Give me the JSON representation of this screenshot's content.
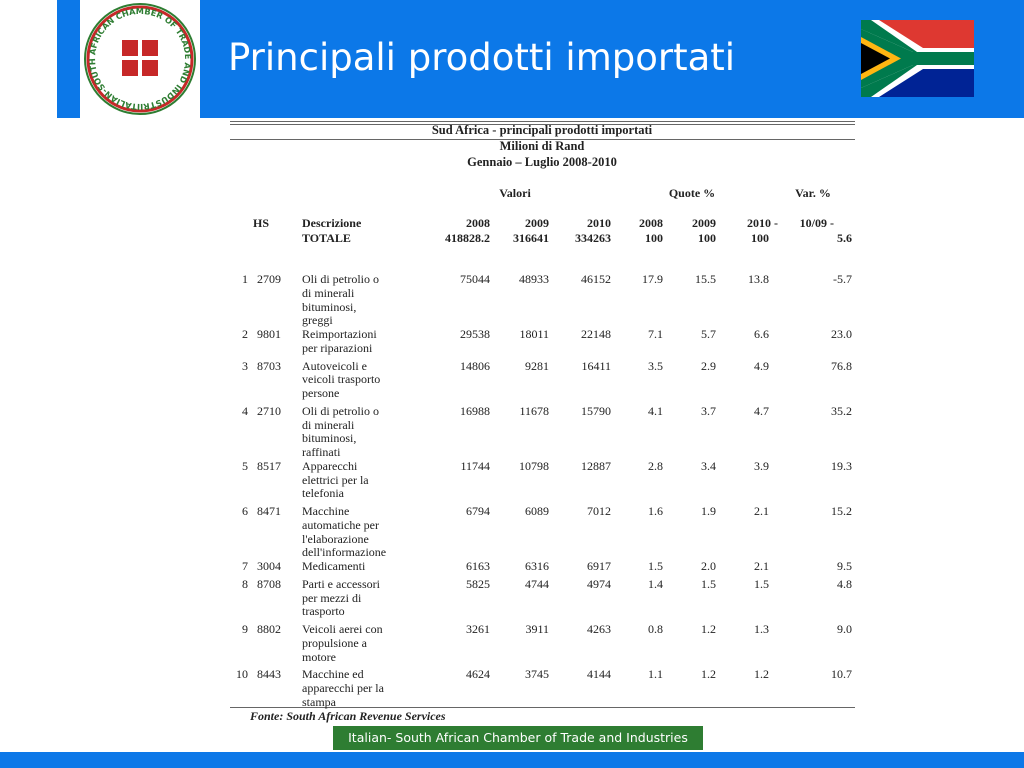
{
  "header": {
    "title": "Principali prodotti importati",
    "logo_text": "ITALIAN-SOUTH AFRICAN CHAMBER OF TRADE AND INDUSTRIES"
  },
  "table": {
    "title": [
      "Sud Africa - principali prodotti importati",
      "Milioni di Rand",
      "Gennaio – Luglio 2008-2010"
    ],
    "groups": [
      "Valori",
      "Quote %",
      "Var. %"
    ],
    "columns": [
      [
        "HS"
      ],
      [
        "Descrizione",
        "TOTALE"
      ],
      [
        "2008",
        "418828.2"
      ],
      [
        "2009",
        "316641"
      ],
      [
        "2010",
        "334263"
      ],
      [
        "2008",
        "100"
      ],
      [
        "2009",
        "100"
      ],
      [
        "2010 -",
        "100"
      ],
      [
        "10/09 -",
        "5.6"
      ]
    ],
    "rows": [
      [
        "1",
        "2709",
        [
          "Oli di petrolio o",
          "di minerali",
          "bituminosi,",
          "greggi"
        ],
        "75044",
        "48933",
        "46152",
        "17.9",
        "15.5",
        "13.8",
        "-5.7"
      ],
      [
        "2",
        "9801",
        [
          "Reimportazioni",
          "per riparazioni"
        ],
        "29538",
        "18011",
        "22148",
        "7.1",
        "5.7",
        "6.6",
        "23.0"
      ],
      [
        "3",
        "8703",
        [
          "Autoveicoli e",
          "veicoli trasporto",
          "persone"
        ],
        "14806",
        "9281",
        "16411",
        "3.5",
        "2.9",
        "4.9",
        "76.8"
      ],
      [
        "4",
        "2710",
        [
          "Oli di petrolio o",
          "di minerali",
          "bituminosi,",
          "raffinati"
        ],
        "16988",
        "11678",
        "15790",
        "4.1",
        "3.7",
        "4.7",
        "35.2"
      ],
      [
        "5",
        "8517",
        [
          "Apparecchi",
          "elettrici per la",
          "telefonia"
        ],
        "11744",
        "10798",
        "12887",
        "2.8",
        "3.4",
        "3.9",
        "19.3"
      ],
      [
        "6",
        "8471",
        [
          "Macchine",
          "automatiche per",
          "l'elaborazione",
          "dell'informazione"
        ],
        "6794",
        "6089",
        "7012",
        "1.6",
        "1.9",
        "2.1",
        "15.2"
      ],
      [
        "7",
        "3004",
        [
          "Medicamenti"
        ],
        "6163",
        "6316",
        "6917",
        "1.5",
        "2.0",
        "2.1",
        "9.5"
      ],
      [
        "8",
        "8708",
        [
          "Parti e accessori",
          "per mezzi di",
          "trasporto"
        ],
        "5825",
        "4744",
        "4974",
        "1.4",
        "1.5",
        "1.5",
        "4.8"
      ],
      [
        "9",
        "8802",
        [
          "Veicoli aerei con",
          "propulsione a",
          "motore"
        ],
        "3261",
        "3911",
        "4263",
        "0.8",
        "1.2",
        "1.3",
        "9.0"
      ],
      [
        "10",
        "8443",
        [
          "Macchine ed",
          "apparecchi per la",
          "stampa"
        ],
        "4624",
        "3745",
        "4144",
        "1.1",
        "1.2",
        "1.2",
        "10.7"
      ]
    ],
    "source": "Fonte: South African Revenue Services"
  },
  "footer": {
    "text": "Italian- South African Chamber of Trade and Industries"
  }
}
